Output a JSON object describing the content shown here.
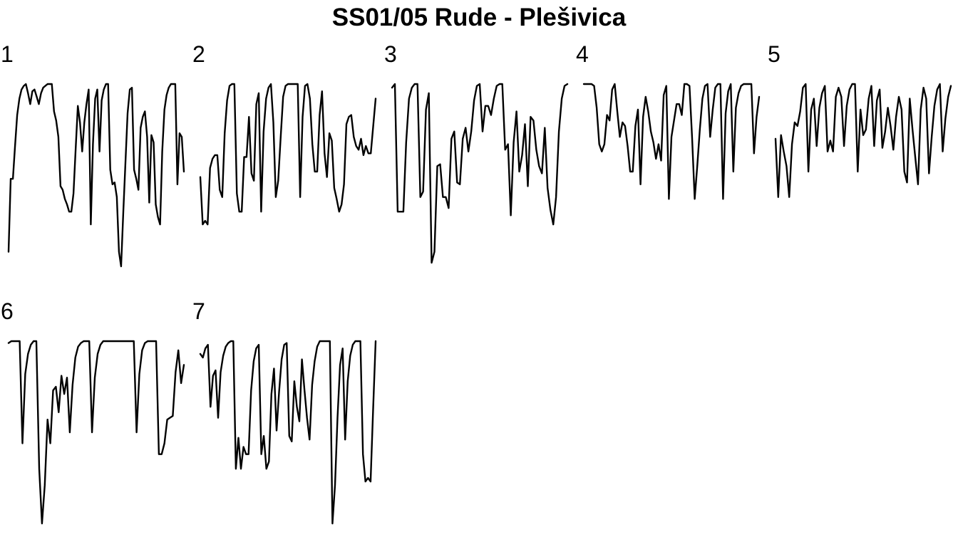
{
  "chart_data": {
    "type": "line",
    "title": "SS01/05 Rude - Plešivica",
    "xlabel": "",
    "ylabel": "",
    "grid": false,
    "legend": "none",
    "axes_shown": false,
    "line_color": "#000000",
    "background": "#ffffff",
    "ylim": [
      0,
      1
    ],
    "panels": [
      {
        "label": "1",
        "values": [
          0.08,
          0.48,
          0.48,
          0.66,
          0.83,
          0.92,
          0.97,
          0.99,
          1.0,
          0.95,
          0.89,
          0.96,
          0.97,
          0.93,
          0.89,
          0.95,
          0.98,
          0.99,
          1.0,
          1.0,
          1.0,
          0.85,
          0.8,
          0.71,
          0.44,
          0.42,
          0.37,
          0.34,
          0.3,
          0.3,
          0.4,
          0.64,
          0.88,
          0.79,
          0.63,
          0.79,
          0.89,
          0.97,
          0.23,
          0.67,
          0.92,
          0.97,
          0.63,
          0.91,
          0.97,
          1.0,
          1.0,
          0.53,
          0.45,
          0.46,
          0.38,
          0.08,
          0.0,
          0.3,
          0.57,
          0.84,
          0.97,
          0.98,
          0.53,
          0.48,
          0.42,
          0.76,
          0.82,
          0.85,
          0.71,
          0.35,
          0.72,
          0.68,
          0.34,
          0.27,
          0.23,
          0.63,
          0.86,
          0.94,
          0.98,
          1.0,
          1.0,
          1.0,
          0.45,
          0.73,
          0.71,
          0.52
        ]
      },
      {
        "label": "2",
        "values": [
          0.49,
          0.23,
          0.25,
          0.23,
          0.54,
          0.59,
          0.61,
          0.61,
          0.42,
          0.38,
          0.73,
          0.91,
          0.99,
          1.0,
          1.0,
          0.4,
          0.3,
          0.3,
          0.6,
          0.6,
          0.82,
          0.51,
          0.47,
          0.89,
          0.95,
          0.3,
          0.74,
          0.92,
          0.98,
          1.0,
          0.79,
          0.38,
          0.47,
          0.71,
          0.93,
          0.99,
          1.0,
          1.0,
          1.0,
          1.0,
          1.0,
          0.38,
          0.82,
          0.99,
          1.0,
          0.92,
          0.67,
          0.52,
          0.52,
          0.83,
          0.96,
          0.62,
          0.49,
          0.73,
          0.69,
          0.43,
          0.37,
          0.3,
          0.34,
          0.45,
          0.78,
          0.82,
          0.83,
          0.71,
          0.66,
          0.64,
          0.7,
          0.61,
          0.66,
          0.62,
          0.62,
          0.77,
          0.92
        ]
      },
      {
        "label": "3",
        "values": [
          0.98,
          1.0,
          0.3,
          0.3,
          0.3,
          0.68,
          0.92,
          0.98,
          1.0,
          1.0,
          0.38,
          0.41,
          0.86,
          0.95,
          0.02,
          0.08,
          0.55,
          0.56,
          0.38,
          0.38,
          0.32,
          0.7,
          0.74,
          0.46,
          0.45,
          0.7,
          0.76,
          0.63,
          0.74,
          0.91,
          0.99,
          1.0,
          0.74,
          0.88,
          0.88,
          0.83,
          0.92,
          0.99,
          1.0,
          1.0,
          0.64,
          0.67,
          0.28,
          0.68,
          0.85,
          0.52,
          0.61,
          0.78,
          0.44,
          0.82,
          0.8,
          0.64,
          0.55,
          0.51,
          0.76,
          0.43,
          0.31,
          0.23,
          0.38,
          0.74,
          0.92,
          0.99,
          1.0
        ]
      },
      {
        "label": "4",
        "values": [
          1.0,
          1.0,
          1.0,
          1.0,
          0.99,
          0.87,
          0.67,
          0.63,
          0.67,
          0.83,
          0.8,
          0.97,
          1.0,
          0.85,
          0.71,
          0.79,
          0.77,
          0.66,
          0.52,
          0.52,
          0.77,
          0.86,
          0.45,
          0.82,
          0.93,
          0.85,
          0.74,
          0.68,
          0.59,
          0.67,
          0.58,
          0.94,
          0.99,
          0.37,
          0.71,
          0.8,
          0.89,
          0.89,
          0.83,
          1.0,
          1.0,
          0.99,
          0.71,
          0.37,
          0.55,
          0.75,
          0.92,
          0.99,
          1.0,
          0.71,
          0.86,
          0.98,
          1.0,
          1.0,
          0.37,
          0.84,
          0.96,
          1.0,
          0.52,
          0.87,
          0.95,
          0.99,
          1.0,
          1.0,
          1.0,
          1.0,
          0.62,
          0.82,
          0.93
        ]
      },
      {
        "label": "5",
        "values": [
          0.7,
          0.38,
          0.72,
          0.63,
          0.55,
          0.38,
          0.67,
          0.79,
          0.77,
          0.85,
          0.98,
          1.0,
          0.52,
          0.86,
          0.92,
          0.66,
          0.87,
          0.95,
          0.99,
          0.63,
          0.69,
          0.63,
          0.93,
          0.98,
          0.93,
          0.66,
          0.88,
          0.97,
          1.0,
          1.0,
          0.52,
          0.86,
          0.72,
          0.75,
          0.92,
          0.99,
          0.66,
          0.91,
          0.97,
          0.65,
          0.74,
          0.87,
          0.77,
          0.64,
          0.82,
          0.93,
          0.86,
          0.52,
          0.46,
          0.92,
          0.75,
          0.6,
          0.45,
          0.86,
          0.98,
          0.92,
          0.51,
          0.71,
          0.88,
          0.97,
          1.0,
          0.63,
          0.81,
          0.93,
          0.99
        ]
      },
      {
        "label": "6",
        "values": [
          0.99,
          1.0,
          1.0,
          1.0,
          1.0,
          0.44,
          0.82,
          0.93,
          0.98,
          1.0,
          1.0,
          0.3,
          0.0,
          0.21,
          0.57,
          0.44,
          0.73,
          0.75,
          0.61,
          0.81,
          0.71,
          0.8,
          0.5,
          0.76,
          0.91,
          0.97,
          0.99,
          1.0,
          1.0,
          1.0,
          0.5,
          0.8,
          0.93,
          0.98,
          1.0,
          1.0,
          1.0,
          1.0,
          1.0,
          1.0,
          1.0,
          1.0,
          1.0,
          1.0,
          1.0,
          1.0,
          0.5,
          0.82,
          0.95,
          0.99,
          1.0,
          1.0,
          1.0,
          1.0,
          0.38,
          0.38,
          0.44,
          0.57,
          0.58,
          0.59,
          0.83,
          0.95,
          0.77,
          0.87
        ]
      },
      {
        "label": "7",
        "values": [
          0.93,
          0.91,
          0.96,
          0.98,
          0.64,
          0.81,
          0.84,
          0.58,
          0.83,
          0.92,
          0.97,
          0.99,
          1.0,
          1.0,
          0.3,
          0.47,
          0.3,
          0.42,
          0.38,
          0.38,
          0.73,
          0.89,
          0.96,
          0.98,
          0.38,
          0.48,
          0.3,
          0.34,
          0.71,
          0.85,
          0.51,
          0.72,
          0.9,
          0.98,
          0.99,
          0.48,
          0.45,
          0.78,
          0.64,
          0.56,
          0.9,
          0.73,
          0.58,
          0.46,
          0.76,
          0.89,
          0.97,
          1.0,
          1.0,
          1.0,
          1.0,
          1.0,
          0.0,
          0.21,
          0.58,
          0.87,
          0.96,
          0.46,
          0.78,
          0.92,
          0.98,
          1.0,
          1.0,
          1.0,
          0.38,
          0.23,
          0.25,
          0.23,
          0.62,
          1.0
        ]
      }
    ]
  }
}
